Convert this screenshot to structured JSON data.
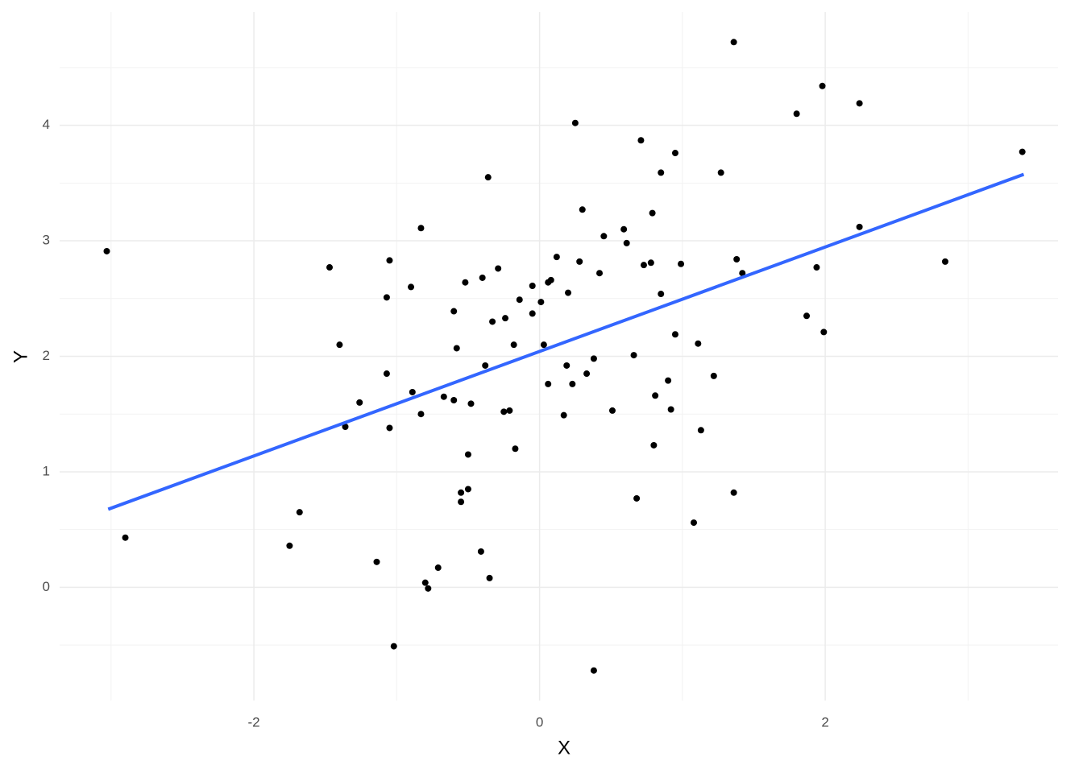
{
  "chart_data": {
    "type": "scatter",
    "x_label": "X",
    "y_label": "Y",
    "x": [
      -3.03,
      -2.9,
      -1.75,
      -1.68,
      -1.47,
      -1.4,
      -1.36,
      -1.26,
      -1.14,
      -1.07,
      -1.07,
      -1.05,
      -1.05,
      -1.02,
      -0.9,
      -0.89,
      -0.83,
      -0.83,
      -0.8,
      -0.78,
      -0.71,
      -0.67,
      -0.6,
      -0.6,
      -0.58,
      -0.55,
      -0.55,
      -0.52,
      -0.5,
      -0.5,
      -0.48,
      -0.41,
      -0.4,
      -0.38,
      -0.36,
      -0.35,
      -0.33,
      -0.29,
      -0.25,
      -0.24,
      -0.21,
      -0.18,
      -0.17,
      -0.14,
      -0.05,
      -0.05,
      0.01,
      0.03,
      0.06,
      0.06,
      0.08,
      0.12,
      0.17,
      0.19,
      0.2,
      0.23,
      0.25,
      0.28,
      0.3,
      0.33,
      0.38,
      0.38,
      0.42,
      0.45,
      0.51,
      0.59,
      0.61,
      0.66,
      0.68,
      0.71,
      0.73,
      0.78,
      0.79,
      0.8,
      0.81,
      0.85,
      0.85,
      0.9,
      0.92,
      0.95,
      0.95,
      0.99,
      1.08,
      1.11,
      1.13,
      1.22,
      1.27,
      1.36,
      1.36,
      1.38,
      1.42,
      1.8,
      1.87,
      1.94,
      1.98,
      1.99,
      2.24,
      2.24,
      2.84,
      3.38
    ],
    "values": [
      2.91,
      0.43,
      0.36,
      0.65,
      2.77,
      2.1,
      1.39,
      1.6,
      0.22,
      1.85,
      2.51,
      2.83,
      1.38,
      -0.51,
      2.6,
      1.69,
      3.11,
      1.5,
      0.04,
      -0.01,
      0.17,
      1.65,
      2.39,
      1.62,
      2.07,
      0.82,
      0.74,
      2.64,
      1.15,
      0.85,
      1.59,
      0.31,
      2.68,
      1.92,
      3.55,
      0.08,
      2.3,
      2.76,
      1.52,
      2.33,
      1.53,
      2.1,
      1.2,
      2.49,
      2.37,
      2.61,
      2.47,
      2.1,
      2.64,
      1.76,
      2.66,
      2.86,
      1.49,
      1.92,
      2.55,
      1.76,
      4.02,
      2.82,
      3.27,
      1.85,
      1.98,
      -0.72,
      2.72,
      3.04,
      1.53,
      3.1,
      2.98,
      2.01,
      0.77,
      3.87,
      2.79,
      2.81,
      3.24,
      1.23,
      1.66,
      2.54,
      3.59,
      1.79,
      1.54,
      3.76,
      2.19,
      2.8,
      0.56,
      2.11,
      1.36,
      1.83,
      3.59,
      0.82,
      4.72,
      2.84,
      2.72,
      4.1,
      2.35,
      2.77,
      4.34,
      2.21,
      4.19,
      3.12,
      2.82,
      3.77
    ],
    "color": "#000000",
    "trend": {
      "x": [
        -3.02,
        3.39
      ],
      "values": [
        0.676,
        3.575
      ],
      "color": "#3366FF"
    },
    "xlim": [
      -3.36,
      3.63
    ],
    "ylim": [
      -0.98,
      4.98
    ],
    "xticks": [
      -2,
      0,
      2
    ],
    "yticks": [
      0,
      1,
      2,
      3,
      4
    ],
    "grid": true
  }
}
